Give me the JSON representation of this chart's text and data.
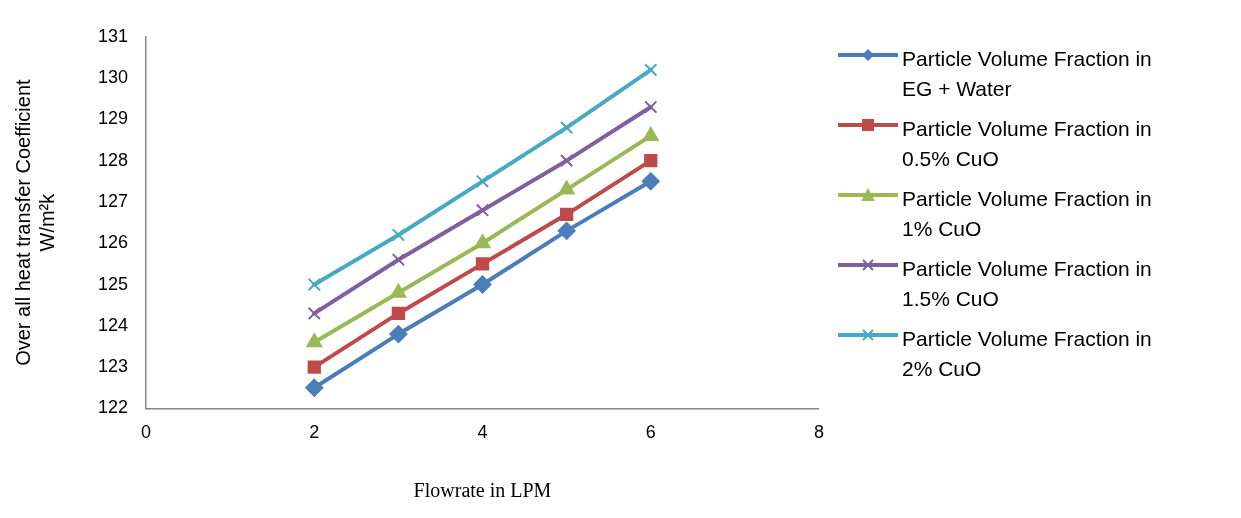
{
  "chart_data": {
    "type": "line",
    "xlabel": "Flowrate in LPM",
    "ylabel": "Over all heat transfer Coefficient W/m²k",
    "x": [
      2,
      3,
      4,
      5,
      6
    ],
    "xlim": [
      0,
      8
    ],
    "xticks": [
      0,
      2,
      4,
      6,
      8
    ],
    "ylim": [
      122,
      131
    ],
    "yticks": [
      122,
      123,
      124,
      125,
      126,
      127,
      128,
      129,
      130,
      131
    ],
    "grid": false,
    "legend": "right",
    "line_style": "solid",
    "series": [
      {
        "name": "Particle Volume Fraction in EG + Water",
        "color": "#4a7ebb",
        "marker": "diamond",
        "values": [
          122.5,
          123.8,
          125,
          126.3,
          127.5
        ]
      },
      {
        "name": "Particle Volume Fraction in 0.5% CuO",
        "color": "#be4b48",
        "marker": "square",
        "values": [
          123,
          124.3,
          125.5,
          126.7,
          128
        ]
      },
      {
        "name": "Particle Volume Fraction in 1% CuO",
        "color": "#98b954",
        "marker": "triangle",
        "values": [
          123.6,
          124.8,
          126,
          127.3,
          128.6
        ]
      },
      {
        "name": "Particle Volume Fraction in 1.5% CuO",
        "color": "#7d60a0",
        "marker": "cross",
        "values": [
          124.3,
          125.6,
          126.8,
          128,
          129.3
        ]
      },
      {
        "name": "Particle Volume Fraction in 2% CuO",
        "color": "#46aac5",
        "marker": "cross",
        "values": [
          125,
          126.2,
          127.5,
          128.8,
          130.2
        ]
      }
    ]
  }
}
